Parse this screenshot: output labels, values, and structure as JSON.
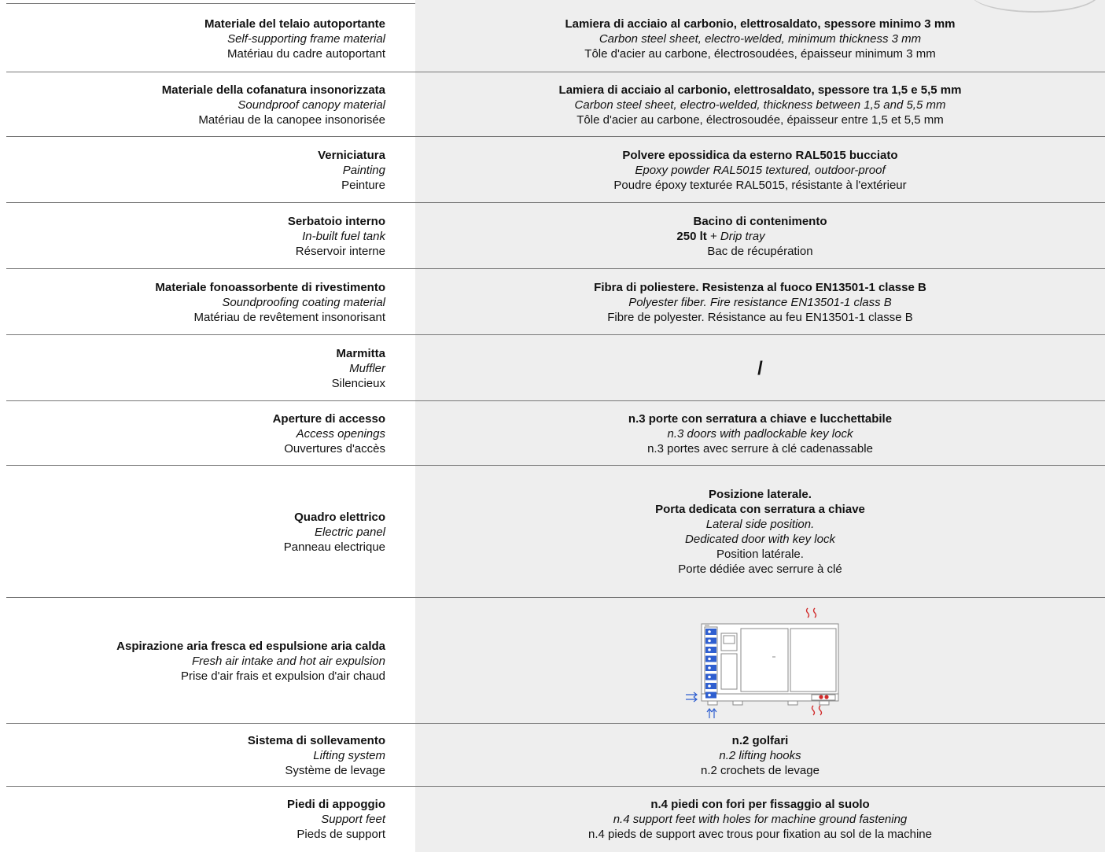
{
  "rows": [
    {
      "label_it": "Materiale del telaio autoportante",
      "label_en": "Self-supporting frame material",
      "label_fr": "Matériau du cadre autoportant",
      "value_it": "Lamiera di acciaio al carbonio, elettrosaldato, spessore minimo 3 mm",
      "value_en": "Carbon steel sheet, electro-welded, minimum thickness 3 mm",
      "value_fr": "Tôle d'acier au carbone, électrosoudées, épaisseur minimum 3 mm"
    },
    {
      "label_it": "Materiale della cofanatura insonorizzata",
      "label_en": "Soundproof canopy material",
      "label_fr": "Matériau de la canopee insonorisée",
      "value_it": "Lamiera di acciaio al carbonio, elettrosaldato, spessore tra 1,5 e 5,5 mm",
      "value_en": "Carbon steel sheet, electro-welded, thickness between 1,5 and 5,5 mm",
      "value_fr": "Tôle d'acier au carbone, électrosoudée, épaisseur entre 1,5 et 5,5 mm"
    },
    {
      "label_it": "Verniciatura",
      "label_en": "Painting",
      "label_fr": "Peinture",
      "value_it": "Polvere epossidica da esterno RAL5015 bucciato",
      "value_en": "Epoxy powder RAL5015 textured, outdoor-proof",
      "value_fr": "Poudre époxy texturée RAL5015, résistante à l'extérieur"
    },
    {
      "label_it": "Serbatoio interno",
      "label_en": "In-built fuel tank",
      "label_fr": "Réservoir interne",
      "value_it": "Bacino di contenimento",
      "value_amount": "250 lt",
      "value_plus": " + ",
      "value_en": "Drip tray",
      "value_fr": "Bac de récupération"
    },
    {
      "label_it": "Materiale fonoassorbente di rivestimento",
      "label_en": "Soundproofing coating material",
      "label_fr": "Matériau de revêtement insonorisant",
      "value_it": "Fibra di poliestere. Resistenza al fuoco EN13501-1 classe B",
      "value_en": "Polyester fiber. Fire resistance EN13501-1 class B",
      "value_fr": "Fibre de polyester. Résistance au feu EN13501-1 classe B"
    },
    {
      "label_it": "Marmitta",
      "label_en": "Muffler",
      "label_fr": "Silencieux",
      "value_slash": "/"
    },
    {
      "label_it": "Aperture di accesso",
      "label_en": "Access openings",
      "label_fr": "Ouvertures d'accès",
      "value_it": "n.3 porte con serratura a chiave e lucchettabile",
      "value_en": "n.3 doors with padlockable key lock",
      "value_fr": "n.3 portes avec serrure à clé cadenassable"
    },
    {
      "label_it": "Quadro elettrico",
      "label_en": "Electric panel",
      "label_fr": "Panneau electrique",
      "value_it_1": "Posizione laterale.",
      "value_it_2": "Porta dedicata con serratura a chiave",
      "value_en_1": "Lateral side position.",
      "value_en_2": "Dedicated door with key lock",
      "value_fr_1": "Position latérale.",
      "value_fr_2": "Porte dédiée avec serrure à clé"
    },
    {
      "label_it": "Aspirazione aria fresca ed espulsione aria calda",
      "label_en": "Fresh air intake and hot air expulsion",
      "label_fr": "Prise d'air frais et expulsion d'air chaud",
      "diagram_colors": {
        "intake": "#2f5fd0",
        "exhaust": "#d12a2a",
        "outline": "#8a8a8a"
      }
    },
    {
      "label_it": "Sistema di sollevamento",
      "label_en": "Lifting system",
      "label_fr": "Système de levage",
      "value_it": "n.2 golfari",
      "value_en": "n.2 lifting hooks",
      "value_fr": "n.2 crochets de levage"
    },
    {
      "label_it": "Piedi di appoggio",
      "label_en": "Support feet",
      "label_fr": "Pieds de support",
      "value_it": "n.4 piedi con fori per fissaggio al suolo",
      "value_en": "n.4 support feet with holes for machine ground fastening",
      "value_fr": "n.4 pieds de support avec trous pour fixation au sol de la machine"
    }
  ]
}
